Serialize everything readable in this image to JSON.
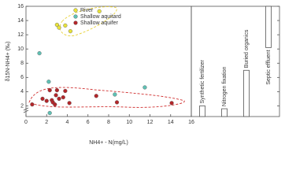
{
  "chart_data": {
    "type": "scatter",
    "x_label": "NH4+ - N(mg/L)",
    "y_label": "δ15N-NH4+ (‰)",
    "xlim": [
      0,
      16
    ],
    "xticks": [
      0,
      2,
      4,
      6,
      8,
      10,
      12,
      14,
      16
    ],
    "ylim": [
      0.5,
      16
    ],
    "yticks": [
      2,
      4,
      6,
      8,
      10,
      12,
      14,
      16
    ],
    "legend": "upper left",
    "series": [
      {
        "name": "River",
        "color": "#e8e23a",
        "x": [
          3.0,
          3.2,
          3.8,
          4.3,
          7.1
        ],
        "values": [
          13.4,
          13.0,
          13.3,
          12.5,
          15.3
        ]
      },
      {
        "name": "Shallow aquitard",
        "color": "#5fc0b4",
        "x": [
          1.3,
          2.2,
          2.3,
          8.6,
          11.5
        ],
        "values": [
          9.4,
          5.4,
          1.0,
          3.6,
          4.6
        ]
      },
      {
        "name": "Shallow aquifer",
        "color": "#b3262a",
        "x": [
          0.6,
          1.6,
          2.0,
          2.3,
          2.5,
          2.6,
          2.8,
          2.9,
          3.0,
          3.2,
          3.6,
          3.8,
          4.2,
          6.8,
          8.8,
          14.1
        ],
        "values": [
          2.2,
          3.0,
          2.7,
          4.2,
          2.8,
          2.5,
          2.2,
          3.5,
          4.2,
          3.0,
          3.2,
          4.1,
          2.4,
          3.4,
          2.5,
          2.4
        ]
      }
    ],
    "sources": [
      {
        "label": "Synthetic fertilizer",
        "low": 0.5,
        "high": 2.0
      },
      {
        "label": "Nitrogen fixation",
        "low": 0.5,
        "high": 1.6
      },
      {
        "label": "Buried organics",
        "low": 0.5,
        "high": 7.0
      },
      {
        "label": "Septic effluent",
        "low": 10.2,
        "high": 16
      }
    ]
  }
}
